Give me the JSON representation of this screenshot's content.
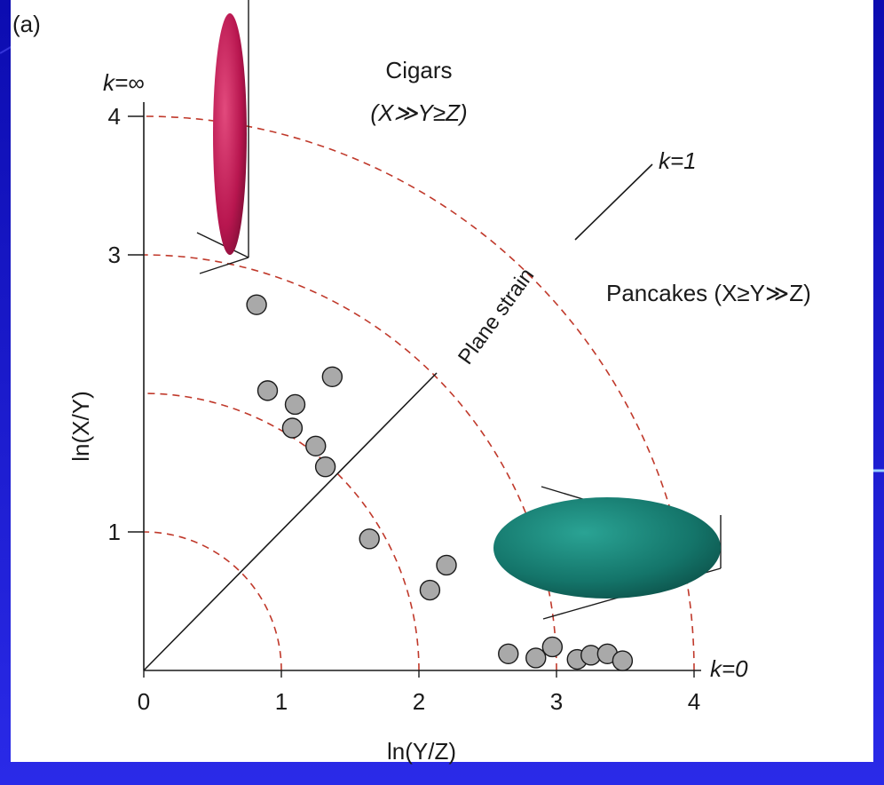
{
  "colors": {
    "background": "#1a1ad6",
    "panel": "#ffffff",
    "contour": "#c0392b",
    "point": "#a9a9a9",
    "cigar": "#c2185b",
    "pancake": "#1a7f73"
  },
  "chart_data": {
    "type": "scatter",
    "panel_label": "(a)",
    "xlabel": "ln(Y/Z)",
    "ylabel": "ln(X/Y)",
    "xlim": [
      0,
      4
    ],
    "ylim": [
      0,
      4
    ],
    "xticks": [
      "0",
      "1",
      "2",
      "3",
      "4"
    ],
    "yticks": [
      "1",
      "3",
      "4"
    ],
    "ytick_values": [
      1,
      3,
      4
    ],
    "contour_radii": [
      1,
      2,
      3,
      4
    ],
    "points": [
      {
        "x": 0.82,
        "y": 2.64
      },
      {
        "x": 0.9,
        "y": 2.02
      },
      {
        "x": 1.1,
        "y": 1.92
      },
      {
        "x": 1.37,
        "y": 2.12
      },
      {
        "x": 1.08,
        "y": 1.75
      },
      {
        "x": 1.25,
        "y": 1.62
      },
      {
        "x": 1.32,
        "y": 1.47
      },
      {
        "x": 1.64,
        "y": 0.95
      },
      {
        "x": 2.2,
        "y": 0.76
      },
      {
        "x": 2.08,
        "y": 0.58
      },
      {
        "x": 2.65,
        "y": 0.12
      },
      {
        "x": 2.85,
        "y": 0.09
      },
      {
        "x": 2.97,
        "y": 0.17
      },
      {
        "x": 3.15,
        "y": 0.08
      },
      {
        "x": 3.25,
        "y": 0.11
      },
      {
        "x": 3.37,
        "y": 0.12
      },
      {
        "x": 3.48,
        "y": 0.07
      }
    ],
    "annotations": {
      "k_infinity": "k=∞",
      "k_one": "k=1",
      "k_zero": "k=0",
      "cigars_title": "Cigars",
      "cigars_sub": "(X≫Y≥Z)",
      "pancakes": "Pancakes (X≥Y≫Z)",
      "plane_strain": "Plane strain"
    }
  }
}
